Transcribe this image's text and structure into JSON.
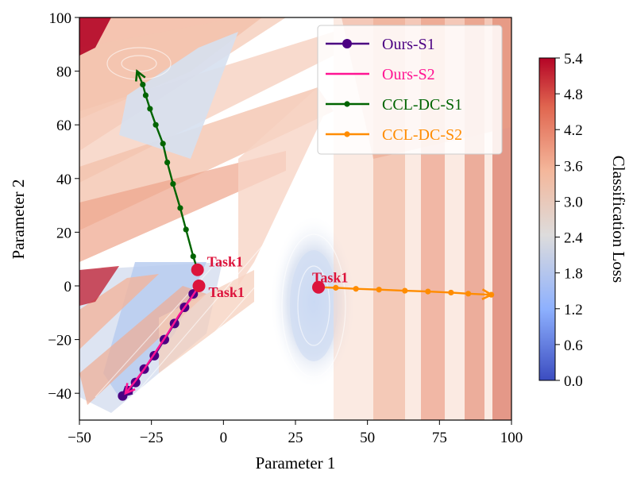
{
  "chart_data": {
    "type": "line",
    "title": "",
    "xlabel": "Parameter 1",
    "ylabel": "Parameter 2",
    "xlim": [
      -50,
      100
    ],
    "ylim": [
      -50,
      100
    ],
    "xticks": [
      "−50",
      "−25",
      "0",
      "25",
      "50",
      "75",
      "100"
    ],
    "xtick_values": [
      -50,
      -25,
      0,
      25,
      50,
      75,
      100
    ],
    "yticks": [
      "100",
      "80",
      "60",
      "40",
      "20",
      "0",
      "−20",
      "−40"
    ],
    "ytick_values": [
      100,
      80,
      60,
      40,
      20,
      0,
      -20,
      -40
    ],
    "background": "contour map of classification loss",
    "colorbar": {
      "label": "Classification Loss",
      "range": [
        0.0,
        5.4
      ],
      "ticks": [
        "0.0",
        "0.6",
        "1.2",
        "1.8",
        "2.4",
        "3.0",
        "3.6",
        "4.2",
        "4.8",
        "5.4"
      ]
    },
    "legend_position": "top-right",
    "series": [
      {
        "name": "Ours-S1",
        "color": "#4b0082",
        "marker": "large-circle",
        "points": [
          [
            -8.5,
            0
          ],
          [
            -10.5,
            -3
          ],
          [
            -13.5,
            -8
          ],
          [
            -17,
            -14
          ],
          [
            -20.5,
            -20
          ],
          [
            -24,
            -26
          ],
          [
            -27.5,
            -31
          ],
          [
            -30.5,
            -36
          ],
          [
            -33,
            -39
          ],
          [
            -35,
            -41
          ]
        ]
      },
      {
        "name": "Ours-S2",
        "color": "#ff1493",
        "marker": "none",
        "points": [
          [
            -8.5,
            0
          ],
          [
            -11.5,
            -5
          ],
          [
            -15.5,
            -11
          ],
          [
            -19.5,
            -18
          ],
          [
            -23.5,
            -24.5
          ],
          [
            -27.5,
            -31
          ],
          [
            -31,
            -36
          ],
          [
            -34,
            -40
          ]
        ]
      },
      {
        "name": "CCL-DC-S1",
        "color": "#006400",
        "marker": "small-circle",
        "points": [
          [
            -9,
            6
          ],
          [
            -10.5,
            11
          ],
          [
            -13,
            21
          ],
          [
            -15,
            29
          ],
          [
            -17.5,
            38
          ],
          [
            -19.5,
            46
          ],
          [
            -21,
            53
          ],
          [
            -23.5,
            60
          ],
          [
            -25.5,
            66
          ],
          [
            -27,
            71
          ],
          [
            -28,
            75
          ],
          [
            -30,
            80
          ]
        ]
      },
      {
        "name": "CCL-DC-S2",
        "color": "#ff8c00",
        "marker": "small-circle",
        "points": [
          [
            33,
            -0.5
          ],
          [
            39,
            -0.7
          ],
          [
            46,
            -1.1
          ],
          [
            54,
            -1.4
          ],
          [
            63,
            -1.8
          ],
          [
            71,
            -2.1
          ],
          [
            79,
            -2.5
          ],
          [
            85,
            -2.9
          ],
          [
            93,
            -3.3
          ]
        ]
      }
    ],
    "annotations": [
      {
        "text": "Task1",
        "x": -9,
        "y": 6,
        "color": "#dc143c"
      },
      {
        "text": "Task1",
        "x": -8.5,
        "y": 0,
        "color": "#dc143c"
      },
      {
        "text": "Task1",
        "x": 33,
        "y": -0.5,
        "color": "#dc143c"
      }
    ]
  }
}
